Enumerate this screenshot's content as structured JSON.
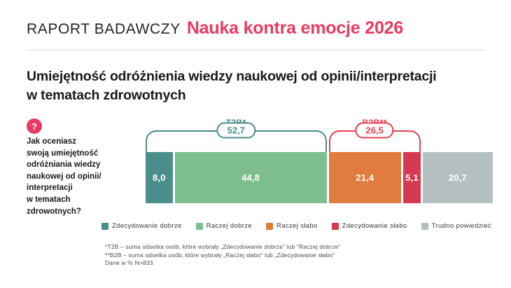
{
  "header": {
    "kicker": "RAPORT BADAWCZY",
    "report_title": "Nauka kontra emocje 2026"
  },
  "slide_title": "Umiejętność odróżnienia wiedzy naukowej od opinii/interpretacji\nw tematach zdrowotnych",
  "question": {
    "icon": "question-mark-icon",
    "text": "Jak oceniasz\nswoją umiejętność\nodróżniania wiedzy\nnaukowej od opinii/\ninterpretacji\nw tematach\nzdrowotnych?"
  },
  "chart_data": {
    "type": "bar",
    "variant": "horizontal-stacked",
    "unit": "%",
    "categories": [
      "Zdecydowanie dobrze",
      "Raczej dobrze",
      "Raczej słabo",
      "Zdecydowanie słabo",
      "Trudno powiedzieć"
    ],
    "values": [
      8.0,
      44.8,
      21.4,
      5.1,
      20.7
    ],
    "value_labels": [
      "8,0",
      "44,8",
      "21,4",
      "5,1",
      "20,7"
    ],
    "colors": [
      "#4A8D8B",
      "#7DBD8E",
      "#E07C3E",
      "#D63850",
      "#B3BFC1"
    ],
    "brackets": [
      {
        "label": "T2B*",
        "value": "52,7",
        "from": 0,
        "to": 1,
        "color": "#4A8D8B"
      },
      {
        "label": "B2B**",
        "value": "26,5",
        "from": 2,
        "to": 3,
        "color": "#E94050"
      }
    ],
    "legend_position": "bottom",
    "xlim": [
      0,
      100
    ],
    "grid": false
  },
  "footnotes": [
    "*T2B – suma odsetka osób, które wybrały „Zdecydowanie dobrze” lub “Raczej dobrze”",
    "**B2B – suma odsetka osób, które wybrały „Raczej słabo” lub „Zdecydowanie słabo”",
    "Dane w % N=833."
  ],
  "colors": {
    "brand_pink": "#E83A62",
    "text_dark": "#17191b",
    "divider": "#dcdcdc"
  }
}
